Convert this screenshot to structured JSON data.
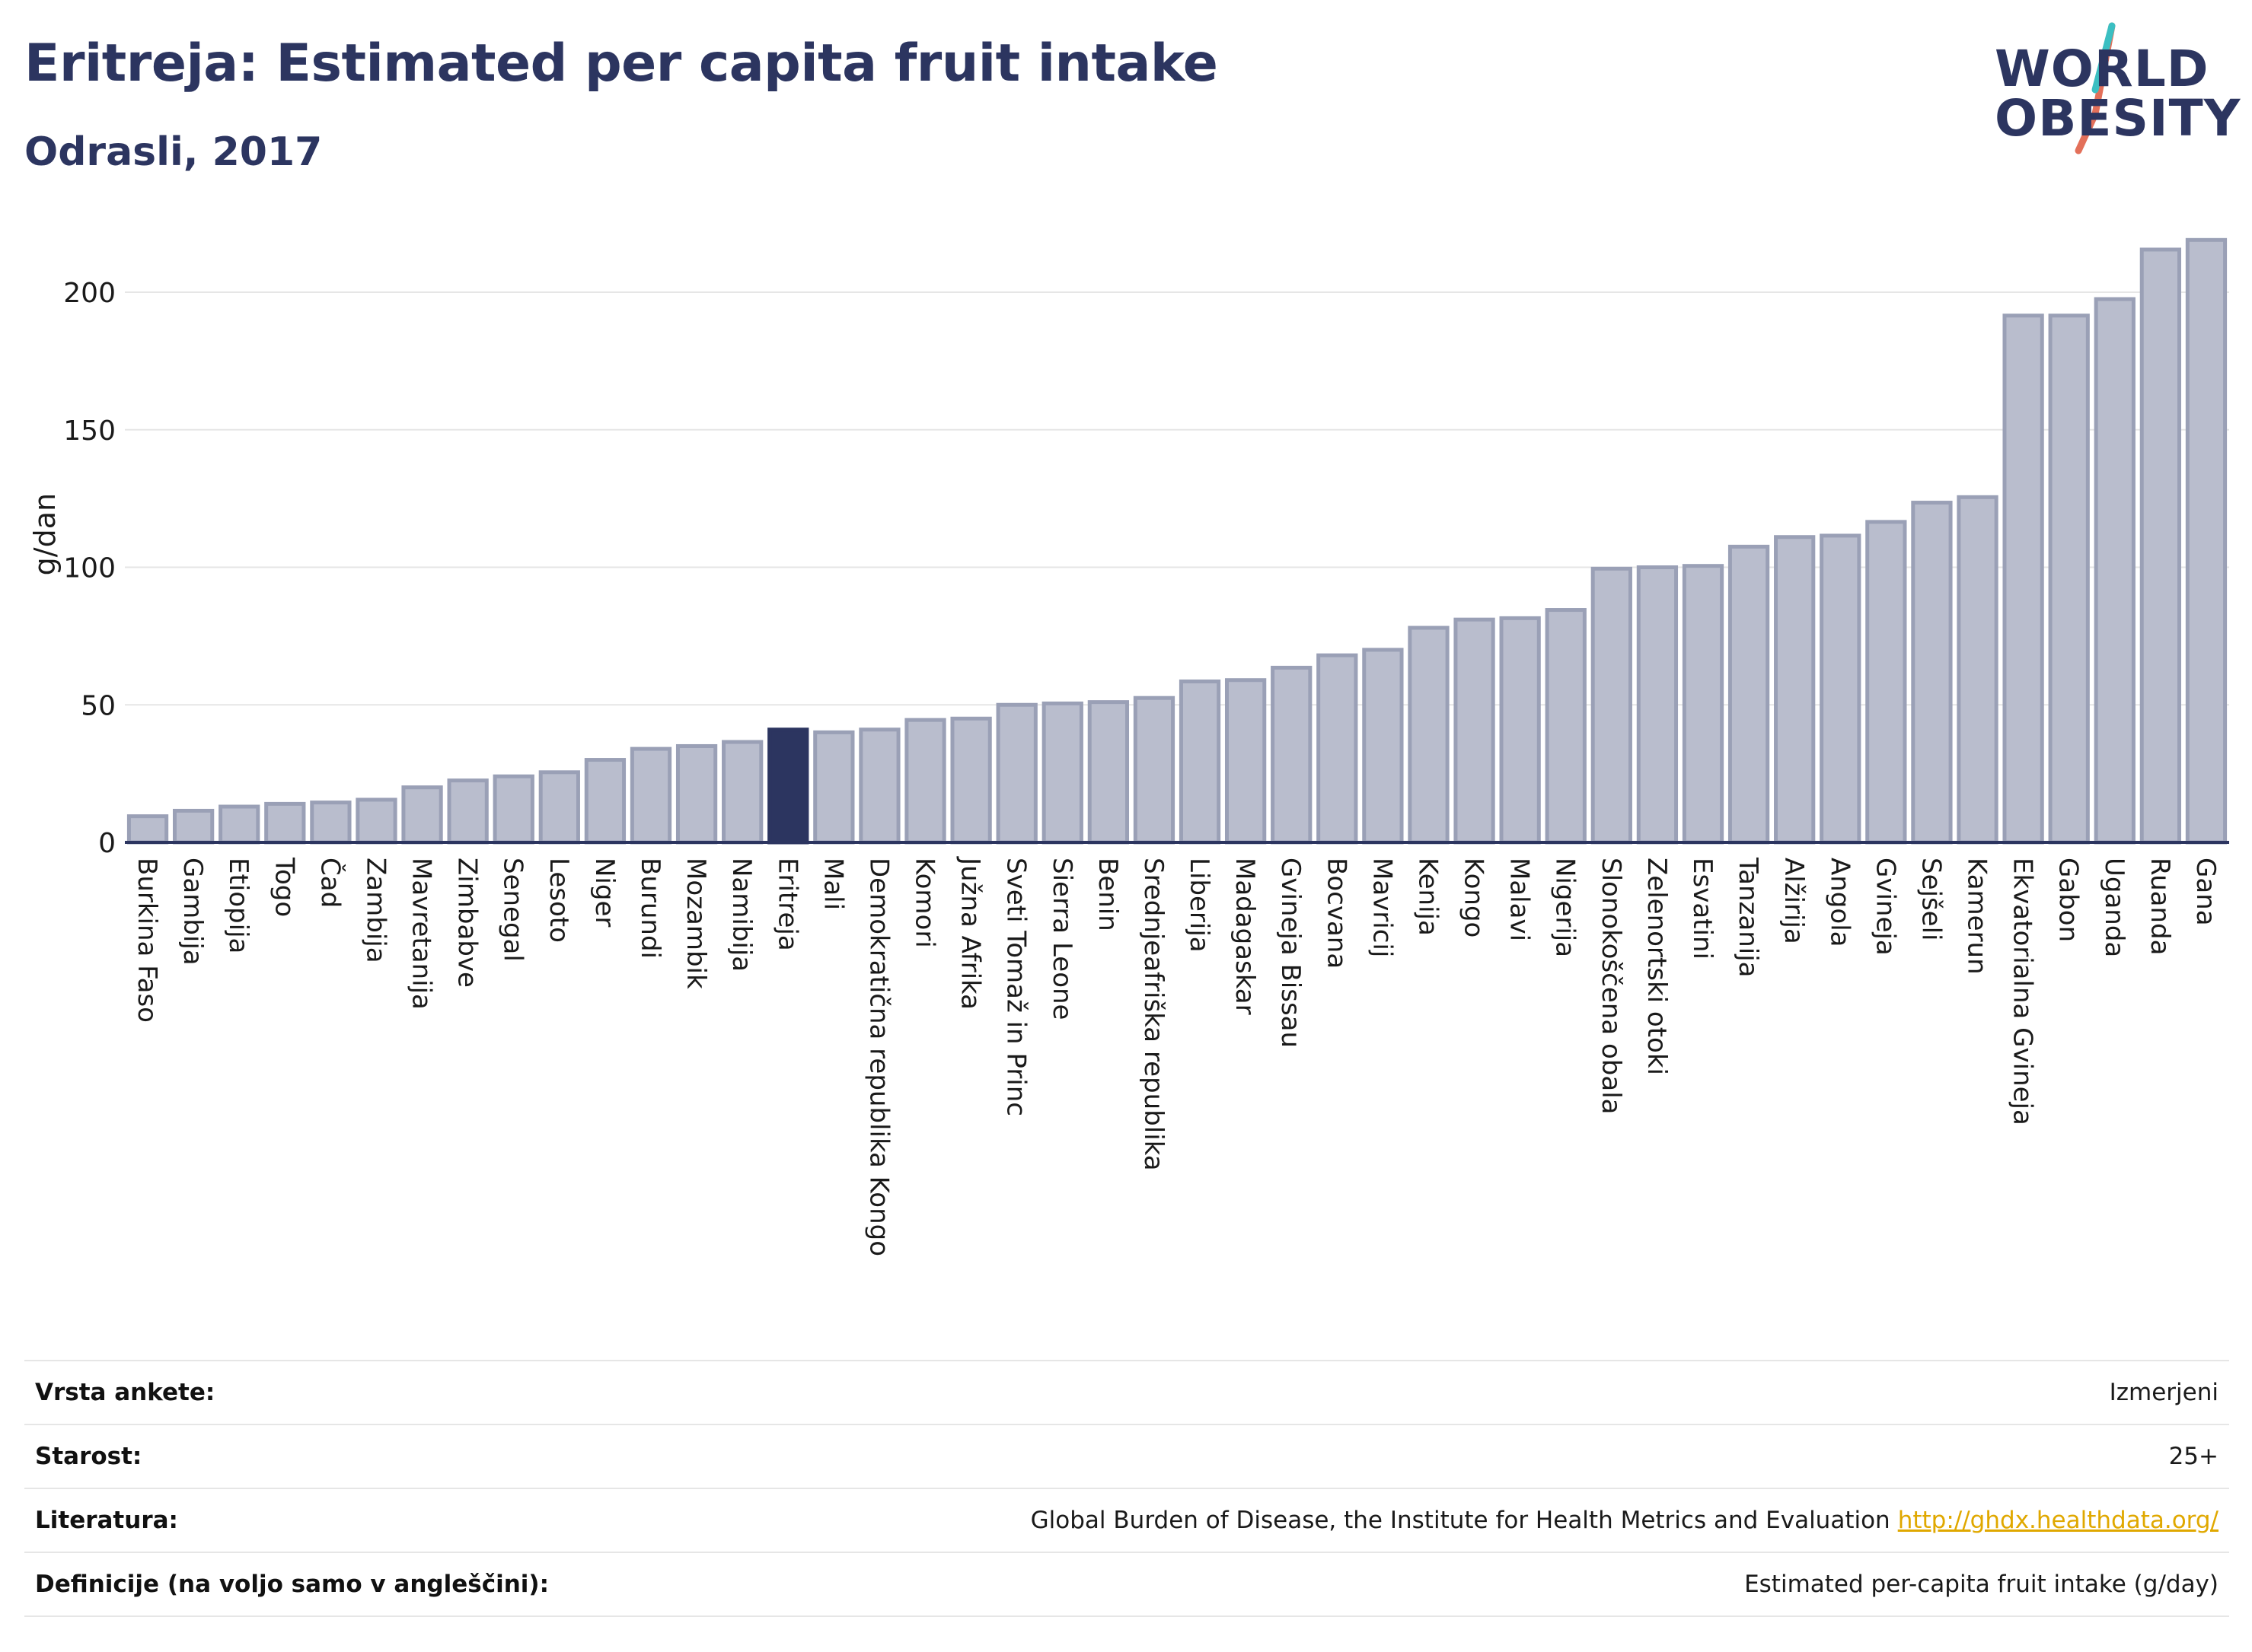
{
  "header": {
    "title": "Eritreja: Estimated per capita fruit intake",
    "subtitle": "Odrasli, 2017"
  },
  "logo": {
    "line1": "WORLD",
    "line2": "OBESITY"
  },
  "colors": {
    "bar": "#b9bdcd",
    "bar_border": "#9aa0b6",
    "highlight": "#2c3560",
    "title": "#2c3560",
    "grid": "#e6e6e6",
    "axis": "#2c3560",
    "link": "#e0a800",
    "logo_slash_teal": "#3bbfc2",
    "logo_slash_red": "#e3705a"
  },
  "chart_data": {
    "type": "bar",
    "ylabel": "g/dan",
    "ylim": [
      0,
      225
    ],
    "yticks": [
      0,
      50,
      100,
      150,
      200
    ],
    "grid": true,
    "highlight": "Eritreja",
    "categories": [
      "Burkina Faso",
      "Gambija",
      "Etiopija",
      "Togo",
      "Čad",
      "Zambija",
      "Mavretanija",
      "Zimbabve",
      "Senegal",
      "Lesoto",
      "Niger",
      "Burundi",
      "Mozambik",
      "Namibija",
      "Eritreja",
      "Mali",
      "Demokratična republika Kongo",
      "Komori",
      "Južna Afrika",
      "Sveti Tomaž in Princ",
      "Sierra Leone",
      "Benin",
      "Srednjeafriška republika",
      "Liberija",
      "Madagaskar",
      "Gvineja Bissau",
      "Bocvana",
      "Mavricij",
      "Kenija",
      "Kongo",
      "Malavi",
      "Nigerija",
      "Slonokoščena obala",
      "Zelenortski otoki",
      "Esvatini",
      "Tanzanija",
      "Alžirija",
      "Angola",
      "Gvineja",
      "Sejšeli",
      "Kamerun",
      "Ekvatorialna Gvineja",
      "Gabon",
      "Uganda",
      "Ruanda",
      "Gana"
    ],
    "values": [
      9.5,
      11.5,
      13,
      14,
      14.5,
      15.5,
      20,
      22.5,
      24,
      25.5,
      30,
      34,
      35,
      36.5,
      41,
      40,
      41,
      44.5,
      45,
      50,
      50.5,
      51,
      52.5,
      58.5,
      59,
      63.5,
      68,
      70,
      78,
      81,
      81.5,
      84.5,
      99.5,
      100,
      100.5,
      107.5,
      111,
      111.5,
      116.5,
      123.5,
      125.5,
      191.5,
      191.5,
      197.5,
      215.5,
      219
    ]
  },
  "meta": [
    {
      "label": "Vrsta ankete:",
      "value": "Izmerjeni",
      "link": ""
    },
    {
      "label": "Starost:",
      "value": "25+",
      "link": ""
    },
    {
      "label": "Literatura:",
      "value": "Global Burden of Disease, the Institute for Health Metrics and Evaluation",
      "link": "http://ghdx.healthdata.org/"
    },
    {
      "label": "Definicije (na voljo samo v angleščini):",
      "value": "Estimated per-capita fruit intake (g/day)",
      "link": ""
    }
  ]
}
